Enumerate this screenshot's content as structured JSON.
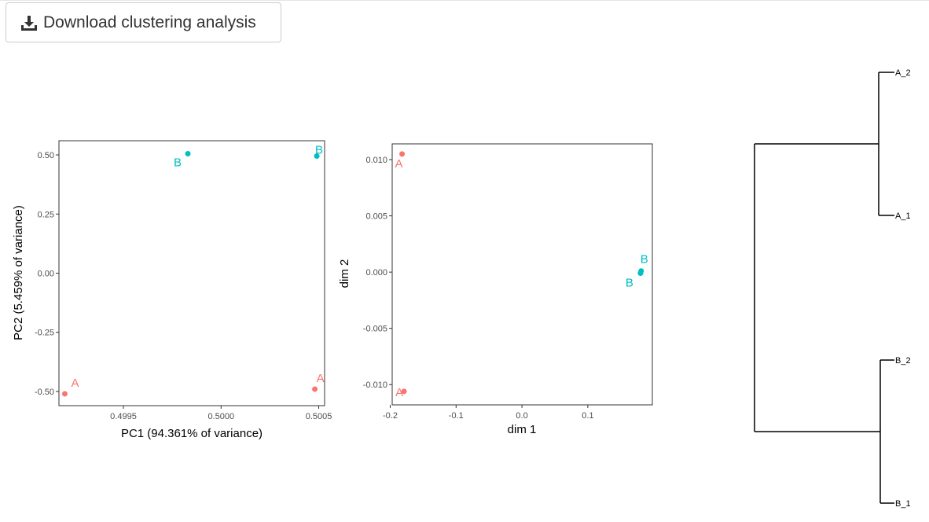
{
  "toolbar": {
    "download_label": "Download clustering analysis",
    "download_icon": "download-icon"
  },
  "chart_data": [
    {
      "type": "scatter",
      "xlabel": "PC1 (94.361% of variance)",
      "ylabel": "PC2 (5.459% of variance)",
      "xlim": [
        0.49917,
        0.50053
      ],
      "ylim": [
        -0.56,
        0.56
      ],
      "xticks": [
        0.4995,
        0.5,
        0.5005
      ],
      "xtick_labels": [
        "0.4995",
        "0.5000",
        "0.5005"
      ],
      "yticks": [
        -0.5,
        -0.25,
        0.0,
        0.25,
        0.5
      ],
      "ytick_labels": [
        "-0.50",
        "-0.25",
        "0.00",
        "0.25",
        "0.50"
      ],
      "grid": false,
      "points": [
        {
          "x": 0.4992,
          "y": -0.51,
          "label": "A",
          "color": "#F8766D",
          "label_dx": 13,
          "label_dy": -9
        },
        {
          "x": 0.50048,
          "y": -0.49,
          "label": "A",
          "color": "#F8766D",
          "label_dx": 7,
          "label_dy": -9
        },
        {
          "x": 0.49983,
          "y": 0.505,
          "label": "B",
          "color": "#00BFC4",
          "label_dx": -13,
          "label_dy": 16
        },
        {
          "x": 0.50049,
          "y": 0.495,
          "label": "B",
          "color": "#00BFC4",
          "label_dx": 3,
          "label_dy": -3
        }
      ]
    },
    {
      "type": "scatter",
      "xlabel": "dim 1",
      "ylabel": "dim 2",
      "xlim": [
        -0.197,
        0.198
      ],
      "ylim": [
        -0.0118,
        0.0114
      ],
      "xticks": [
        -0.2,
        -0.1,
        0.0,
        0.1
      ],
      "xtick_labels": [
        "-0.2",
        "-0.1",
        "0.0",
        "0.1"
      ],
      "yticks": [
        -0.01,
        -0.005,
        0.0,
        0.005,
        0.01
      ],
      "ytick_labels": [
        "-0.010",
        "-0.005",
        "0.000",
        "0.005",
        "0.010"
      ],
      "grid": false,
      "points": [
        {
          "x": -0.182,
          "y": 0.0105,
          "label": "A",
          "color": "#F8766D",
          "label_dx": -4,
          "label_dy": 17
        },
        {
          "x": -0.179,
          "y": -0.0106,
          "label": "A",
          "color": "#F8766D",
          "label_dx": -6,
          "label_dy": 6
        },
        {
          "x": 0.181,
          "y": 0.0001,
          "label": "B",
          "color": "#00BFC4",
          "label_dx": 4,
          "label_dy": -10
        },
        {
          "x": 0.18,
          "y": -0.0001,
          "label": "B",
          "color": "#00BFC4",
          "label_dx": -14,
          "label_dy": 17
        }
      ]
    },
    {
      "type": "dendrogram",
      "leaves": [
        "A_2",
        "A_1",
        "B_2",
        "B_1"
      ],
      "clusters": [
        {
          "children": [
            "A_2",
            "A_1"
          ]
        },
        {
          "children": [
            "B_2",
            "B_1"
          ]
        },
        {
          "children": [
            "A",
            "B"
          ]
        }
      ]
    }
  ]
}
